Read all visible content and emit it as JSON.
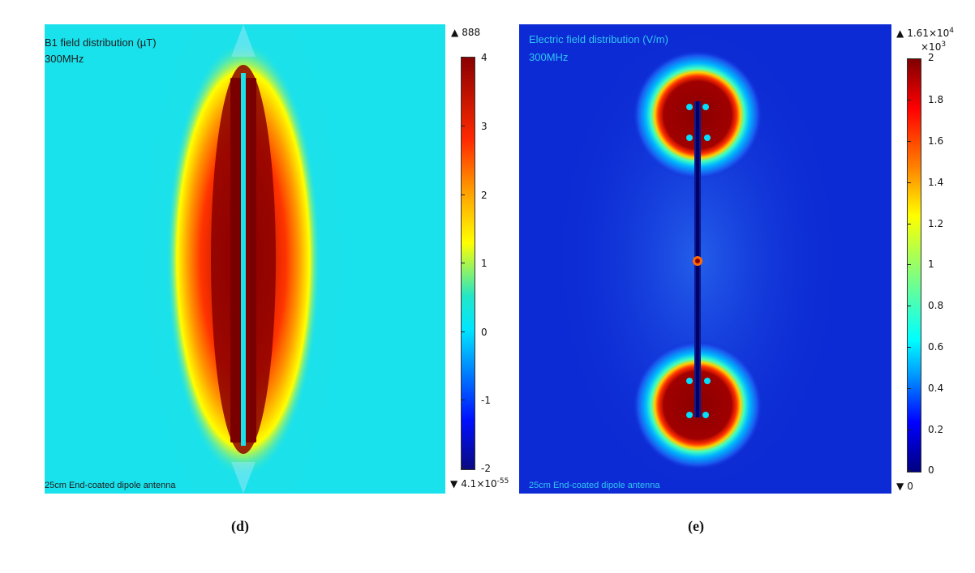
{
  "panels": {
    "d": {
      "title": "B1 field distribution (µT)",
      "frequency": "300MHz",
      "footnote": "25cm End-coated dipole antenna",
      "max_label": "888",
      "min_label": "4.1×10",
      "min_label_exp": "-55",
      "ticks": [
        "4",
        "3",
        "2",
        "1",
        "0",
        "-1",
        "-2"
      ],
      "caption": "(d)",
      "colors": {
        "background": "#19e2ec",
        "core": "#8b0000",
        "gap": "#19e2ec"
      }
    },
    "e": {
      "title": "Electric field distribution (V/m)",
      "frequency": "300MHz",
      "footnote": "25cm End-coated dipole antenna",
      "max_label": "1.61×10",
      "max_label_exp": "4",
      "multiplier": "×10",
      "multiplier_exp": "3",
      "min_label": "0",
      "ticks": [
        "2",
        "1.8",
        "1.6",
        "1.4",
        "1.2",
        "1",
        "0.8",
        "0.6",
        "0.4",
        "0.2",
        "0"
      ],
      "caption": "(e)",
      "colors": {
        "background": "#0d2bd4",
        "hotspot": "#8b0000",
        "antenna": "#000066"
      }
    }
  }
}
